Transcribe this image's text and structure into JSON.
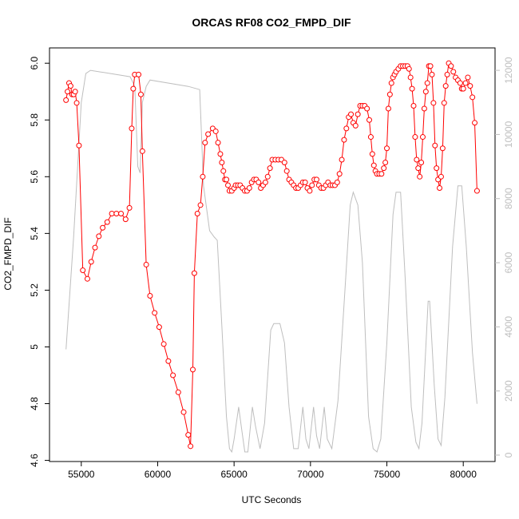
{
  "chart_data": {
    "type": "line",
    "title": "ORCAS RF08 CO2_FMPD_DIF",
    "x_label": "UTC Seconds",
    "y_label": "CO2_FMPD_DIF",
    "xlim": [
      52920,
      82080
    ],
    "xticks": [
      55000,
      60000,
      65000,
      70000,
      75000,
      80000
    ],
    "ylim": [
      4.596,
      6.054
    ],
    "yticks": [
      4.6,
      4.8,
      5.0,
      5.2,
      5.4,
      5.6,
      5.8,
      {
        "value": 6.0,
        "label": "6.0"
      }
    ],
    "y2lim": [
      -200,
      12700
    ],
    "y2ticks": [
      0,
      2000,
      4000,
      6000,
      8000,
      10000,
      12000
    ],
    "series": [
      {
        "color": "#bebebe",
        "axis": "y2",
        "x": [
          54000,
          54500,
          55000,
          55300,
          55600,
          58200,
          58500,
          58700,
          58850,
          59000,
          59250,
          59500,
          62000,
          62750,
          63000,
          63400,
          63700,
          63900,
          64200,
          64500,
          64700,
          64850,
          65000,
          65300,
          65500,
          65700,
          65900,
          66200,
          66400,
          66700,
          67000,
          67400,
          67600,
          68000,
          68300,
          68600,
          68900,
          69200,
          69500,
          69700,
          69900,
          70200,
          70400,
          70600,
          70900,
          71100,
          71400,
          71800,
          72300,
          72600,
          72800,
          73100,
          73400,
          73800,
          74100,
          74350,
          74600,
          75000,
          75400,
          75600,
          75900,
          76200,
          76600,
          76900,
          77100,
          77300,
          77700,
          77800,
          78100,
          78350,
          78550,
          78800,
          79300,
          79650,
          79900,
          80200,
          80600,
          80900
        ],
        "values": [
          3300,
          6800,
          11000,
          11900,
          12000,
          11800,
          11500,
          9000,
          8800,
          11000,
          11500,
          11700,
          11500,
          11400,
          8400,
          7000,
          6800,
          6700,
          4000,
          1200,
          200,
          100,
          500,
          1500,
          800,
          100,
          100,
          1500,
          900,
          200,
          1000,
          3900,
          4100,
          4100,
          3500,
          1500,
          200,
          200,
          1500,
          500,
          200,
          1500,
          600,
          200,
          1500,
          500,
          200,
          1700,
          5500,
          7800,
          8200,
          7800,
          6000,
          1200,
          200,
          100,
          500,
          3500,
          7500,
          8200,
          8200,
          5500,
          1500,
          400,
          200,
          1000,
          4800,
          4800,
          2200,
          500,
          300,
          1800,
          6500,
          8400,
          8400,
          6500,
          3200,
          1600
        ]
      },
      {
        "color": "#ff0000",
        "axis": "y",
        "x": [
          54000,
          54100,
          54200,
          54300,
          54400,
          54500,
          54600,
          54700,
          54850,
          55100,
          55400,
          55650,
          55900,
          56150,
          56400,
          56700,
          57000,
          57300,
          57600,
          57900,
          58150,
          58300,
          58400,
          58500,
          58750,
          58900,
          59000,
          59250,
          59500,
          59800,
          60100,
          60400,
          60700,
          61000,
          61350,
          61700,
          62000,
          62150,
          62300,
          62400,
          62600,
          62800,
          62950,
          63100,
          63300,
          63600,
          63800,
          63950,
          64100,
          64200,
          64300,
          64400,
          64500,
          64600,
          64700,
          64850,
          65000,
          65100,
          65250,
          65400,
          65550,
          65700,
          65850,
          66000,
          66150,
          66300,
          66450,
          66600,
          66750,
          66900,
          67050,
          67200,
          67350,
          67500,
          67700,
          67900,
          68100,
          68300,
          68450,
          68600,
          68750,
          68900,
          69050,
          69200,
          69350,
          69500,
          69650,
          69800,
          69950,
          70100,
          70250,
          70400,
          70550,
          70700,
          70850,
          71000,
          71150,
          71300,
          71450,
          71600,
          71750,
          71900,
          72050,
          72200,
          72350,
          72500,
          72650,
          72800,
          72950,
          73100,
          73250,
          73400,
          73550,
          73700,
          73850,
          73950,
          74050,
          74150,
          74250,
          74350,
          74500,
          74650,
          74800,
          74900,
          75000,
          75100,
          75200,
          75300,
          75400,
          75500,
          75600,
          75750,
          75900,
          76050,
          76200,
          76350,
          76450,
          76550,
          76650,
          76750,
          76850,
          76950,
          77050,
          77150,
          77250,
          77350,
          77450,
          77550,
          77650,
          77750,
          77850,
          77950,
          78050,
          78150,
          78250,
          78350,
          78450,
          78550,
          78650,
          78750,
          78850,
          78950,
          79050,
          79200,
          79350,
          79500,
          79650,
          79800,
          79900,
          80000,
          80150,
          80300,
          80450,
          80600,
          80750,
          80900
        ],
        "values": [
          5.87,
          5.9,
          5.93,
          5.92,
          5.89,
          5.89,
          5.9,
          5.86,
          5.71,
          5.27,
          5.24,
          5.3,
          5.35,
          5.39,
          5.42,
          5.44,
          5.47,
          5.47,
          5.47,
          5.45,
          5.49,
          5.77,
          5.91,
          5.96,
          5.96,
          5.89,
          5.69,
          5.29,
          5.18,
          5.12,
          5.07,
          5.01,
          4.95,
          4.9,
          4.84,
          4.77,
          4.69,
          4.65,
          4.92,
          5.26,
          5.47,
          5.5,
          5.6,
          5.72,
          5.75,
          5.77,
          5.76,
          5.72,
          5.68,
          5.65,
          5.62,
          5.59,
          5.59,
          5.57,
          5.55,
          5.55,
          5.56,
          5.57,
          5.57,
          5.57,
          5.56,
          5.55,
          5.55,
          5.56,
          5.58,
          5.59,
          5.59,
          5.58,
          5.56,
          5.57,
          5.58,
          5.6,
          5.63,
          5.66,
          5.66,
          5.66,
          5.66,
          5.65,
          5.62,
          5.59,
          5.58,
          5.57,
          5.56,
          5.56,
          5.57,
          5.58,
          5.58,
          5.56,
          5.55,
          5.57,
          5.59,
          5.59,
          5.57,
          5.56,
          5.56,
          5.57,
          5.58,
          5.57,
          5.57,
          5.57,
          5.58,
          5.61,
          5.66,
          5.73,
          5.77,
          5.81,
          5.82,
          5.79,
          5.78,
          5.82,
          5.85,
          5.85,
          5.85,
          5.84,
          5.8,
          5.74,
          5.68,
          5.64,
          5.62,
          5.61,
          5.61,
          5.61,
          5.63,
          5.65,
          5.7,
          5.84,
          5.89,
          5.93,
          5.95,
          5.96,
          5.97,
          5.98,
          5.99,
          5.99,
          5.99,
          5.99,
          5.98,
          5.95,
          5.91,
          5.85,
          5.74,
          5.66,
          5.63,
          5.6,
          5.65,
          5.74,
          5.84,
          5.9,
          5.93,
          5.99,
          5.99,
          5.96,
          5.86,
          5.71,
          5.63,
          5.59,
          5.56,
          5.6,
          5.7,
          5.86,
          5.92,
          5.96,
          6.0,
          5.99,
          5.97,
          5.95,
          5.94,
          5.93,
          5.91,
          5.91,
          5.93,
          5.95,
          5.92,
          5.88,
          5.79,
          5.55
        ]
      }
    ]
  }
}
